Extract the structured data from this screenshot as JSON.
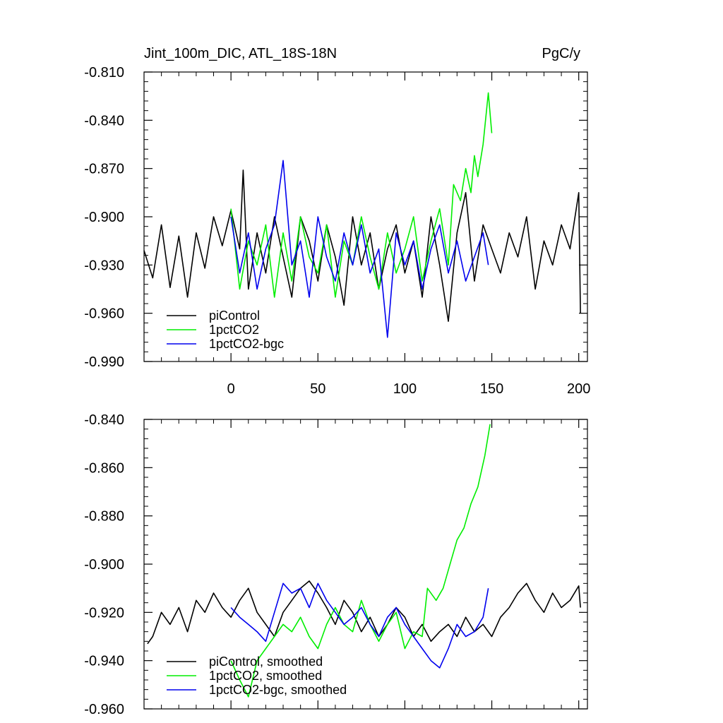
{
  "chart_data": [
    {
      "type": "line",
      "title": "Jint_100m_DIC, ATL_18S-18N",
      "units": "PgC/y",
      "xlabel": "",
      "ylabel": "",
      "xlim": [
        -50,
        205
      ],
      "ylim": [
        -0.99,
        -0.81
      ],
      "x_ticks": [
        0,
        50,
        100,
        150,
        200
      ],
      "x_tick_labels": [
        "0",
        "50",
        "100",
        "150",
        "200"
      ],
      "y_ticks": [
        -0.99,
        -0.96,
        -0.93,
        -0.9,
        -0.87,
        -0.84,
        -0.81
      ],
      "y_tick_labels": [
        "-0.990",
        "-0.960",
        "-0.930",
        "-0.900",
        "-0.870",
        "-0.840",
        "-0.810"
      ],
      "legend_position": "bottom-left",
      "series": [
        {
          "name": "piControl",
          "color": "#000000",
          "x": [
            -50,
            -45,
            -40,
            -35,
            -30,
            -25,
            -20,
            -15,
            -10,
            -5,
            0,
            5,
            7,
            10,
            15,
            20,
            25,
            30,
            35,
            40,
            45,
            50,
            55,
            60,
            65,
            70,
            75,
            80,
            85,
            90,
            95,
            100,
            105,
            110,
            115,
            120,
            125,
            130,
            135,
            140,
            145,
            150,
            155,
            160,
            165,
            170,
            175,
            180,
            185,
            190,
            195,
            200,
            201
          ],
          "values": [
            -0.921,
            -0.938,
            -0.905,
            -0.944,
            -0.912,
            -0.95,
            -0.91,
            -0.932,
            -0.9,
            -0.918,
            -0.896,
            -0.92,
            -0.871,
            -0.945,
            -0.91,
            -0.935,
            -0.9,
            -0.925,
            -0.95,
            -0.9,
            -0.915,
            -0.94,
            -0.905,
            -0.925,
            -0.955,
            -0.9,
            -0.93,
            -0.91,
            -0.945,
            -0.92,
            -0.905,
            -0.935,
            -0.915,
            -0.95,
            -0.9,
            -0.93,
            -0.965,
            -0.91,
            -0.885,
            -0.94,
            -0.905,
            -0.92,
            -0.935,
            -0.91,
            -0.925,
            -0.9,
            -0.945,
            -0.915,
            -0.93,
            -0.905,
            -0.92,
            -0.885,
            -0.96
          ]
        },
        {
          "name": "1pctCO2",
          "color": "#00ee00",
          "x": [
            0,
            5,
            10,
            15,
            20,
            25,
            30,
            35,
            40,
            45,
            50,
            55,
            60,
            65,
            70,
            75,
            80,
            85,
            90,
            95,
            100,
            105,
            110,
            115,
            120,
            125,
            128,
            132,
            135,
            138,
            140,
            142,
            145,
            148,
            150
          ],
          "values": [
            -0.895,
            -0.945,
            -0.915,
            -0.93,
            -0.905,
            -0.95,
            -0.91,
            -0.94,
            -0.9,
            -0.925,
            -0.935,
            -0.905,
            -0.95,
            -0.915,
            -0.93,
            -0.9,
            -0.925,
            -0.945,
            -0.91,
            -0.935,
            -0.92,
            -0.9,
            -0.94,
            -0.915,
            -0.895,
            -0.93,
            -0.88,
            -0.89,
            -0.87,
            -0.885,
            -0.862,
            -0.875,
            -0.855,
            -0.823,
            -0.848
          ]
        },
        {
          "name": "1pctCO2-bgc",
          "color": "#0000ee",
          "x": [
            0,
            5,
            10,
            15,
            20,
            25,
            30,
            35,
            40,
            45,
            50,
            55,
            60,
            65,
            70,
            75,
            80,
            85,
            90,
            95,
            100,
            105,
            110,
            115,
            120,
            125,
            130,
            135,
            140,
            145,
            148
          ],
          "values": [
            -0.9,
            -0.935,
            -0.91,
            -0.945,
            -0.92,
            -0.905,
            -0.865,
            -0.93,
            -0.915,
            -0.95,
            -0.9,
            -0.925,
            -0.94,
            -0.91,
            -0.93,
            -0.905,
            -0.935,
            -0.92,
            -0.975,
            -0.91,
            -0.93,
            -0.915,
            -0.945,
            -0.92,
            -0.905,
            -0.935,
            -0.915,
            -0.94,
            -0.925,
            -0.91,
            -0.93
          ]
        }
      ]
    },
    {
      "type": "line",
      "title": "",
      "xlabel": "",
      "ylabel": "",
      "xlim": [
        -50,
        205
      ],
      "ylim": [
        -0.96,
        -0.84
      ],
      "x_ticks": [
        0,
        50,
        100,
        150,
        200
      ],
      "y_ticks": [
        -0.96,
        -0.94,
        -0.92,
        -0.9,
        -0.88,
        -0.86,
        -0.84
      ],
      "y_tick_labels": [
        "-0.960",
        "-0.940",
        "-0.920",
        "-0.900",
        "-0.880",
        "-0.860",
        "-0.840"
      ],
      "legend_position": "bottom-left",
      "series": [
        {
          "name": "piControl, smoothed",
          "color": "#000000",
          "x": [
            -48,
            -45,
            -40,
            -35,
            -30,
            -25,
            -20,
            -15,
            -10,
            -5,
            0,
            5,
            10,
            15,
            20,
            25,
            30,
            35,
            40,
            45,
            50,
            55,
            60,
            65,
            70,
            75,
            80,
            85,
            90,
            95,
            100,
            105,
            110,
            115,
            120,
            125,
            130,
            135,
            140,
            145,
            150,
            155,
            160,
            165,
            170,
            175,
            180,
            185,
            190,
            195,
            200,
            201
          ],
          "values": [
            -0.933,
            -0.93,
            -0.92,
            -0.925,
            -0.918,
            -0.928,
            -0.915,
            -0.92,
            -0.912,
            -0.918,
            -0.922,
            -0.915,
            -0.91,
            -0.92,
            -0.925,
            -0.93,
            -0.92,
            -0.915,
            -0.91,
            -0.907,
            -0.912,
            -0.918,
            -0.925,
            -0.915,
            -0.92,
            -0.928,
            -0.922,
            -0.93,
            -0.925,
            -0.918,
            -0.922,
            -0.93,
            -0.925,
            -0.932,
            -0.928,
            -0.925,
            -0.93,
            -0.922,
            -0.928,
            -0.925,
            -0.93,
            -0.922,
            -0.918,
            -0.912,
            -0.908,
            -0.915,
            -0.92,
            -0.912,
            -0.918,
            -0.915,
            -0.909,
            -0.918
          ]
        },
        {
          "name": "1pctCO2, smoothed",
          "color": "#00ee00",
          "x": [
            0,
            5,
            10,
            15,
            20,
            25,
            30,
            35,
            40,
            45,
            50,
            55,
            60,
            65,
            70,
            75,
            80,
            85,
            90,
            95,
            100,
            105,
            110,
            113,
            118,
            122,
            126,
            130,
            134,
            138,
            142,
            146,
            149
          ],
          "values": [
            -0.94,
            -0.948,
            -0.955,
            -0.94,
            -0.935,
            -0.93,
            -0.925,
            -0.928,
            -0.922,
            -0.93,
            -0.935,
            -0.925,
            -0.918,
            -0.925,
            -0.928,
            -0.915,
            -0.925,
            -0.932,
            -0.925,
            -0.92,
            -0.935,
            -0.928,
            -0.93,
            -0.91,
            -0.915,
            -0.91,
            -0.9,
            -0.89,
            -0.885,
            -0.875,
            -0.868,
            -0.855,
            -0.842
          ]
        },
        {
          "name": "1pctCO2-bgc, smoothed",
          "color": "#0000ee",
          "x": [
            0,
            5,
            10,
            15,
            20,
            25,
            30,
            35,
            40,
            45,
            50,
            55,
            60,
            65,
            70,
            75,
            80,
            85,
            90,
            95,
            100,
            105,
            110,
            115,
            120,
            125,
            130,
            135,
            140,
            145,
            148
          ],
          "values": [
            -0.918,
            -0.922,
            -0.925,
            -0.928,
            -0.932,
            -0.92,
            -0.908,
            -0.912,
            -0.91,
            -0.918,
            -0.908,
            -0.915,
            -0.92,
            -0.925,
            -0.922,
            -0.918,
            -0.925,
            -0.93,
            -0.922,
            -0.918,
            -0.925,
            -0.93,
            -0.935,
            -0.94,
            -0.943,
            -0.935,
            -0.925,
            -0.93,
            -0.928,
            -0.922,
            -0.91
          ]
        }
      ]
    }
  ]
}
